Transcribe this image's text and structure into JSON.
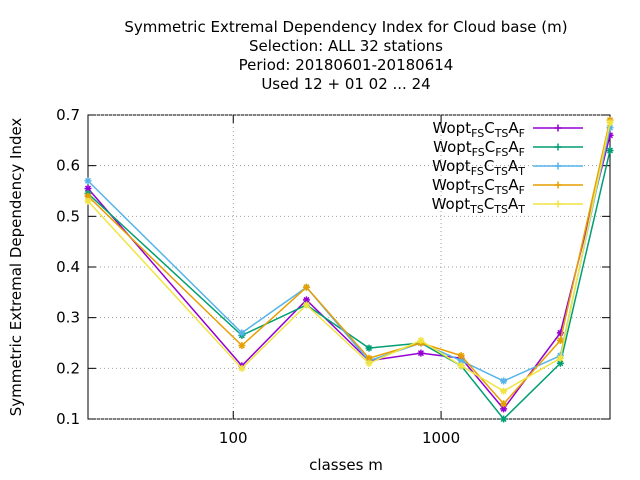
{
  "chart_data": {
    "type": "line",
    "title": [
      "Symmetric Extremal Dependency Index  for Cloud base (m)",
      "Selection: ALL     32 stations",
      "Period: 20180601-20180614",
      "Used  12 + 01 02 ... 24"
    ],
    "x_label": "classes m",
    "y_label": "Symmetric Extremal Dependency Index",
    "x": [
      20,
      110,
      225,
      450,
      800,
      1250,
      2000,
      3750,
      6500
    ],
    "series": [
      {
        "name": "Wopt_{FS}C_{TS}A_{F}",
        "color": "#9400d3",
        "values": [
          0.555,
          0.205,
          0.335,
          0.215,
          0.23,
          0.22,
          0.12,
          0.27,
          0.66
        ]
      },
      {
        "name": "Wopt_{FS}C_{FS}A_{F}",
        "color": "#009e73",
        "values": [
          0.545,
          0.265,
          0.325,
          0.24,
          0.25,
          0.205,
          0.1,
          0.21,
          0.63
        ]
      },
      {
        "name": "Wopt_{FS}C_{TS}A_{T}",
        "color": "#56b4e9",
        "values": [
          0.57,
          0.27,
          0.36,
          0.215,
          0.25,
          0.215,
          0.175,
          0.225,
          0.675
        ]
      },
      {
        "name": "Wopt_{TS}C_{TS}A_{F}",
        "color": "#e69f00",
        "values": [
          0.54,
          0.245,
          0.36,
          0.22,
          0.25,
          0.225,
          0.13,
          0.255,
          0.69
        ]
      },
      {
        "name": "Wopt_{TS}C_{TS}A_{T}",
        "color": "#f0e442",
        "values": [
          0.53,
          0.2,
          0.325,
          0.21,
          0.255,
          0.205,
          0.155,
          0.22,
          0.685
        ]
      }
    ],
    "xlim": [
      20,
      6500
    ],
    "xticks": [
      100,
      1000
    ],
    "xlog": true,
    "ylim": [
      0.1,
      0.7
    ],
    "yticks": [
      0.1,
      0.2,
      0.3,
      0.4,
      0.5,
      0.6,
      0.7
    ],
    "grid": true,
    "legend": "top-right"
  }
}
